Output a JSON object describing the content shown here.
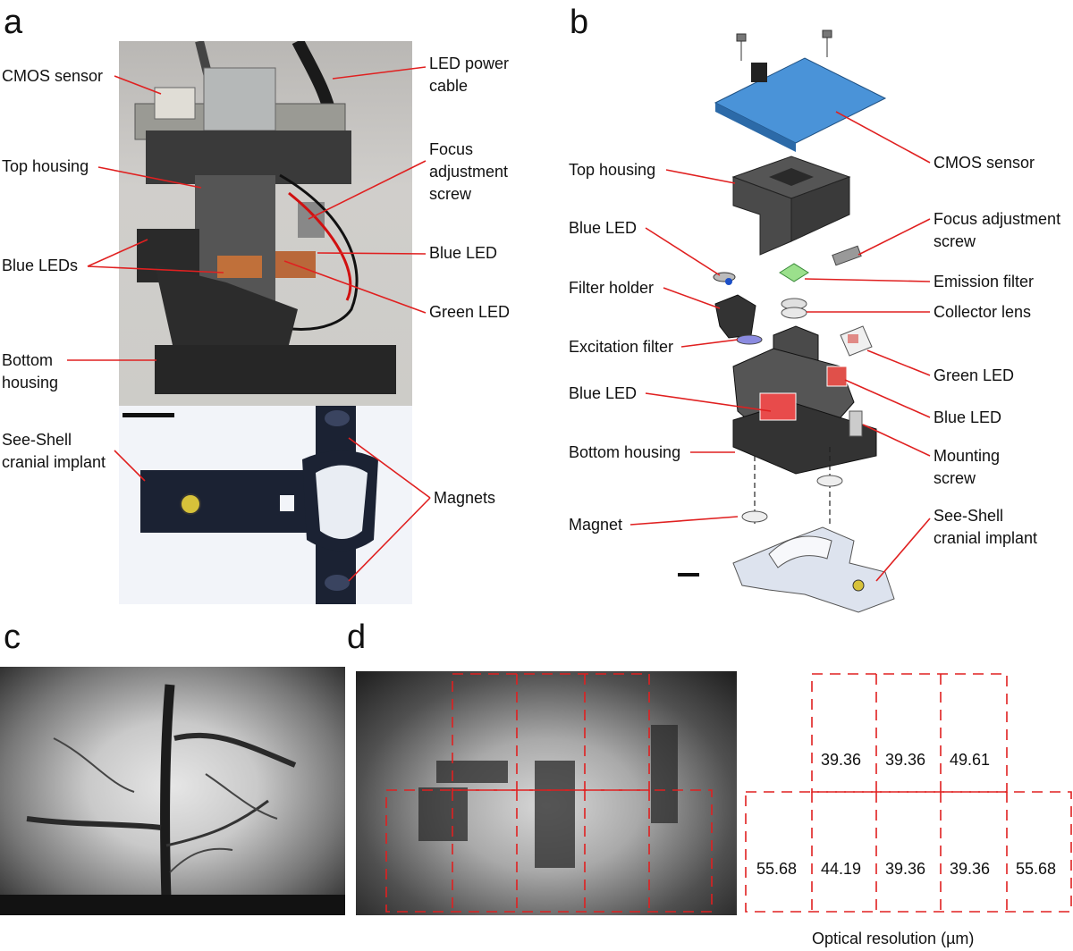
{
  "panels": {
    "a": {
      "letter": "a",
      "labels": {
        "cmos_sensor": "CMOS sensor",
        "led_power_cable": "LED power\ncable",
        "top_housing": "Top housing",
        "focus_screw": "Focus\nadjustment\nscrew",
        "blue_leds": "Blue LEDs",
        "blue_led": "Blue LED",
        "green_led": "Green LED",
        "bottom_housing": "Bottom\nhousing",
        "see_shell": "See-Shell\ncranial implant",
        "magnets": "Magnets"
      }
    },
    "b": {
      "letter": "b",
      "labels": {
        "cmos_sensor": "CMOS sensor",
        "top_housing": "Top housing",
        "focus_screw": "Focus adjustment\nscrew",
        "blue_led_1": "Blue LED",
        "emission_filter": "Emission filter",
        "filter_holder": "Filter holder",
        "collector_lens": "Collector lens",
        "excitation_filter": "Excitation filter",
        "green_led": "Green LED",
        "blue_led_2": "Blue LED",
        "blue_led_3": "Blue LED",
        "bottom_housing": "Bottom housing",
        "mounting_screw": "Mounting\nscrew",
        "magnet": "Magnet",
        "see_shell": "See-Shell\ncranial implant"
      }
    },
    "c": {
      "letter": "c"
    },
    "d": {
      "letter": "d",
      "resolution_top": [
        "39.36",
        "39.36",
        "49.61"
      ],
      "resolution_bottom": [
        "55.68",
        "44.19",
        "39.36",
        "39.36",
        "55.68"
      ],
      "caption": "Optical resolution (µm)"
    }
  },
  "colors": {
    "annotation": "#e02020",
    "grid_dash": "#e02020"
  }
}
